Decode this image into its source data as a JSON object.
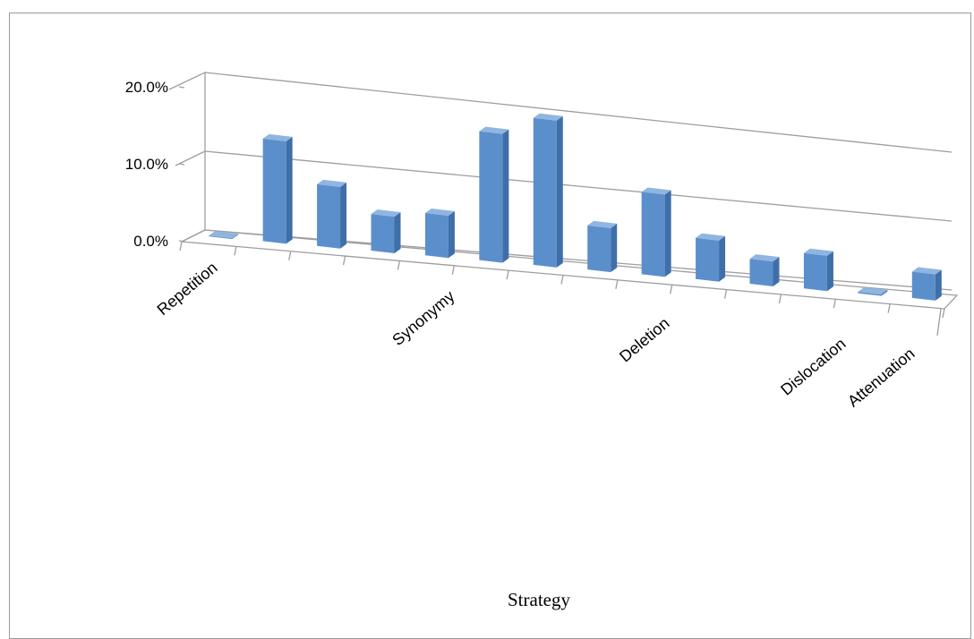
{
  "chart_data": {
    "type": "bar",
    "title": "",
    "xlabel": "Strategy",
    "ylabel": "",
    "ylim": [
      0,
      20
    ],
    "y_ticks": [
      "0.0%",
      "10.0%",
      "20.0%"
    ],
    "grid": true,
    "legend": "none",
    "bar_color": "#5b8fcc",
    "categories": [
      "Repetition",
      "",
      "",
      "",
      "",
      "Synonymy",
      "",
      "",
      "",
      "Deletion",
      "",
      "",
      "Dislocation",
      "Attenuation"
    ],
    "values": [
      0.1,
      13.2,
      8.0,
      4.8,
      5.6,
      17.2,
      19.8,
      6.0,
      11.3,
      5.7,
      3.5,
      5.0,
      0.2,
      3.8
    ]
  }
}
